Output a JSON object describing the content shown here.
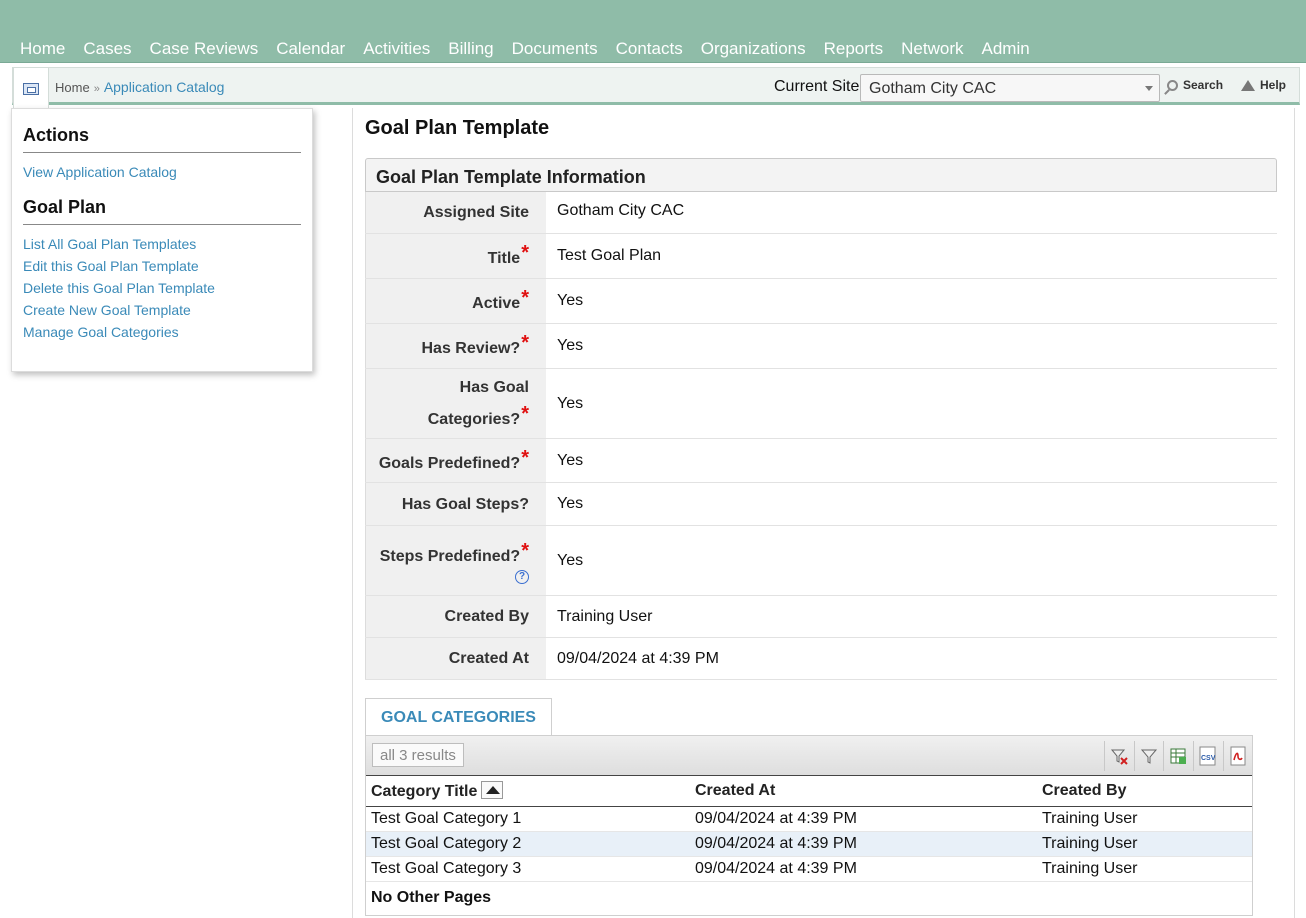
{
  "nav": {
    "items": [
      "Home",
      "Cases",
      "Case Reviews",
      "Calendar",
      "Activities",
      "Billing",
      "Documents",
      "Contacts",
      "Organizations",
      "Reports",
      "Network",
      "Admin"
    ]
  },
  "breadcrumb": {
    "home": "Home",
    "separator": "»",
    "current": "Application Catalog"
  },
  "site": {
    "label": "Current Site",
    "selected": "Gotham City CAC"
  },
  "toolbar": {
    "search": "Search",
    "help": "Help"
  },
  "sidebar": {
    "actions_heading": "Actions",
    "actions": [
      "View Application Catalog"
    ],
    "goal_plan_heading": "Goal Plan",
    "goal_plan_links": [
      "List All Goal Plan Templates",
      "Edit this Goal Plan Template",
      "Delete this Goal Plan Template",
      "Create New Goal Template",
      "Manage Goal Categories"
    ]
  },
  "page": {
    "title": "Goal Plan Template",
    "info_header": "Goal Plan Template Information",
    "required_mark": "*",
    "help_mark": "?",
    "fields": [
      {
        "label": "Assigned Site",
        "value": "Gotham City CAC",
        "required": false
      },
      {
        "label": "Title",
        "value": "Test Goal Plan",
        "required": true
      },
      {
        "label": "Active",
        "value": "Yes",
        "required": true
      },
      {
        "label": "Has Review?",
        "value": "Yes",
        "required": true
      },
      {
        "label_line1": "Has Goal",
        "label_line2": "Categories?",
        "value": "Yes",
        "required": true
      },
      {
        "label": "Goals Predefined?",
        "value": "Yes",
        "required": true
      },
      {
        "label": "Has Goal Steps?",
        "value": "Yes",
        "required": false
      },
      {
        "label": "Steps Predefined?",
        "value": "Yes",
        "required": true
      },
      {
        "label": "Created By",
        "value": "Training User",
        "required": false
      },
      {
        "label": "Created At",
        "value": "09/04/2024 at 4:39 PM",
        "required": false
      }
    ]
  },
  "categories": {
    "tab_label": "GOAL CATEGORIES",
    "results": "all 3 results",
    "tool_csv": "CSV",
    "columns": [
      "Category Title",
      "Created At",
      "Created By"
    ],
    "rows": [
      [
        "Test Goal Category 1",
        "09/04/2024 at 4:39 PM",
        "Training User"
      ],
      [
        "Test Goal Category 2",
        "09/04/2024 at 4:39 PM",
        "Training User"
      ],
      [
        "Test Goal Category 3",
        "09/04/2024 at 4:39 PM",
        "Training User"
      ]
    ],
    "pages_note": "No Other Pages"
  }
}
